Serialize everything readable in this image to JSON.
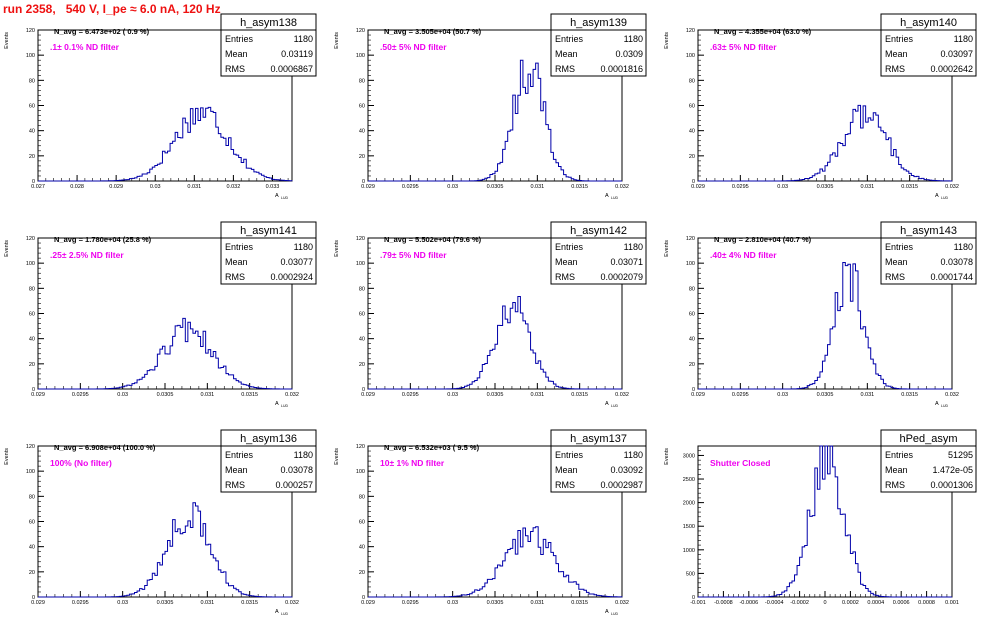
{
  "title": "run 2358,   540 V, I_pe ≈ 6.0 nA, 120 Hz",
  "colors": {
    "title": "#ee1111",
    "annotation": "#ee00ee",
    "histogram": "#0000aa",
    "frame": "#000000"
  },
  "chart_data": [
    {
      "type": "histogram",
      "name": "h_asym138",
      "stats": {
        "Entries": "1180",
        "Mean": "0.03119",
        "RMS": "0.0006867"
      },
      "navg": "N_avg = 6.473e+02 ( 0.9 %)",
      "annotation": ".1± 0.1% ND filter",
      "ylabel": "Events",
      "xlabel": "A",
      "xlim": [
        0.027,
        0.0335
      ],
      "ylim": [
        0,
        120
      ],
      "xticks": [
        0.027,
        0.028,
        0.029,
        0.03,
        0.031,
        0.032,
        0.033
      ],
      "xtick_labels": [
        "0.027",
        "0.028",
        "0.029",
        "0.03",
        "0.031",
        "0.032",
        "0.033"
      ],
      "yticks": [
        0,
        20,
        40,
        60,
        80,
        100,
        120
      ],
      "mean": 0.03119,
      "rms": 0.0006867,
      "peak": 55
    },
    {
      "type": "histogram",
      "name": "h_asym139",
      "stats": {
        "Entries": "1180",
        "Mean": "0.0309",
        "RMS": "0.0001816"
      },
      "navg": "N_avg = 3.505e+04 (50.7 %)",
      "annotation": ".50± 5% ND filter",
      "ylabel": "Events",
      "xlabel": "A",
      "xlim": [
        0.029,
        0.032
      ],
      "ylim": [
        0,
        120
      ],
      "xticks": [
        0.029,
        0.0295,
        0.03,
        0.0305,
        0.031,
        0.0315,
        0.032
      ],
      "xtick_labels": [
        "0.029",
        "0.0295",
        "0.03",
        "0.0305",
        "0.031",
        "0.0315",
        "0.032"
      ],
      "yticks": [
        0,
        20,
        40,
        60,
        80,
        100,
        120
      ],
      "mean": 0.0309,
      "rms": 0.0001816,
      "peak": 90
    },
    {
      "type": "histogram",
      "name": "h_asym140",
      "stats": {
        "Entries": "1180",
        "Mean": "0.03097",
        "RMS": "0.0002642"
      },
      "navg": "N_avg = 4.355e+04 (63.0 %)",
      "annotation": ".63± 5% ND filter",
      "ylabel": "Events",
      "xlabel": "A",
      "xlim": [
        0.029,
        0.032
      ],
      "ylim": [
        0,
        120
      ],
      "xticks": [
        0.029,
        0.0295,
        0.03,
        0.0305,
        0.031,
        0.0315,
        0.032
      ],
      "xtick_labels": [
        "0.029",
        "0.0295",
        "0.03",
        "0.0305",
        "0.031",
        "0.0315",
        "0.032"
      ],
      "yticks": [
        0,
        20,
        40,
        60,
        80,
        100,
        120
      ],
      "mean": 0.03097,
      "rms": 0.0002642,
      "peak": 53
    },
    {
      "type": "histogram",
      "name": "h_asym141",
      "stats": {
        "Entries": "1180",
        "Mean": "0.03077",
        "RMS": "0.0002924"
      },
      "navg": "N_avg = 1.780e+04 (25.8 %)",
      "annotation": ".25± 2.5% ND filter",
      "ylabel": "Events",
      "xlabel": "A",
      "xlim": [
        0.029,
        0.032
      ],
      "ylim": [
        0,
        120
      ],
      "xticks": [
        0.029,
        0.0295,
        0.03,
        0.0305,
        0.031,
        0.0315,
        0.032
      ],
      "xtick_labels": [
        "0.029",
        "0.0295",
        "0.03",
        "0.0305",
        "0.031",
        "0.0315",
        "0.032"
      ],
      "yticks": [
        0,
        20,
        40,
        60,
        80,
        100,
        120
      ],
      "mean": 0.03077,
      "rms": 0.0002924,
      "peak": 47
    },
    {
      "type": "histogram",
      "name": "h_asym142",
      "stats": {
        "Entries": "1180",
        "Mean": "0.03071",
        "RMS": "0.0002079"
      },
      "navg": "N_avg = 5.502e+04 (79.6 %)",
      "annotation": ".79± 5% ND filter",
      "ylabel": "Events",
      "xlabel": "A",
      "xlim": [
        0.029,
        0.032
      ],
      "ylim": [
        0,
        120
      ],
      "xticks": [
        0.029,
        0.0295,
        0.03,
        0.0305,
        0.031,
        0.0315,
        0.032
      ],
      "xtick_labels": [
        "0.029",
        "0.0295",
        "0.03",
        "0.0305",
        "0.031",
        "0.0315",
        "0.032"
      ],
      "yticks": [
        0,
        20,
        40,
        60,
        80,
        100,
        120
      ],
      "mean": 0.03071,
      "rms": 0.0002079,
      "peak": 65
    },
    {
      "type": "histogram",
      "name": "h_asym143",
      "stats": {
        "Entries": "1180",
        "Mean": "0.03078",
        "RMS": "0.0001744"
      },
      "navg": "N_avg = 2.810e+04 (40.7 %)",
      "annotation": ".40± 4% ND filter",
      "ylabel": "Events",
      "xlabel": "A",
      "xlim": [
        0.029,
        0.032
      ],
      "ylim": [
        0,
        120
      ],
      "xticks": [
        0.029,
        0.0295,
        0.03,
        0.0305,
        0.031,
        0.0315,
        0.032
      ],
      "xtick_labels": [
        "0.029",
        "0.0295",
        "0.03",
        "0.0305",
        "0.031",
        "0.0315",
        "0.032"
      ],
      "yticks": [
        0,
        20,
        40,
        60,
        80,
        100,
        120
      ],
      "mean": 0.03078,
      "rms": 0.0001744,
      "peak": 90
    },
    {
      "type": "histogram",
      "name": "h_asym136",
      "stats": {
        "Entries": "1180",
        "Mean": "0.03078",
        "RMS": "0.000257"
      },
      "navg": "N_avg = 6.908e+04 (100.0 %)",
      "annotation": "100% (No filter)",
      "ylabel": "Events",
      "xlabel": "A",
      "xlim": [
        0.029,
        0.032
      ],
      "ylim": [
        0,
        120
      ],
      "xticks": [
        0.029,
        0.0295,
        0.03,
        0.0305,
        0.031,
        0.0315,
        0.032
      ],
      "xtick_labels": [
        "0.029",
        "0.0295",
        "0.03",
        "0.0305",
        "0.031",
        "0.0315",
        "0.032"
      ],
      "yticks": [
        0,
        20,
        40,
        60,
        80,
        100,
        120
      ],
      "mean": 0.03078,
      "rms": 0.000257,
      "peak": 65
    },
    {
      "type": "histogram",
      "name": "h_asym137",
      "stats": {
        "Entries": "1180",
        "Mean": "0.03092",
        "RMS": "0.0002987"
      },
      "navg": "N_avg = 6.532e+03 ( 9.5 %)",
      "annotation": "10± 1% ND filter",
      "ylabel": "Events",
      "xlabel": "A",
      "xlim": [
        0.029,
        0.032
      ],
      "ylim": [
        0,
        120
      ],
      "xticks": [
        0.029,
        0.0295,
        0.03,
        0.0305,
        0.031,
        0.0315,
        0.032
      ],
      "xtick_labels": [
        "0.029",
        "0.0295",
        "0.03",
        "0.0305",
        "0.031",
        "0.0315",
        "0.032"
      ],
      "yticks": [
        0,
        20,
        40,
        60,
        80,
        100,
        120
      ],
      "mean": 0.03092,
      "rms": 0.0002987,
      "peak": 48
    },
    {
      "type": "histogram",
      "name": "hPed_asym",
      "stats": {
        "Entries": "51295",
        "Mean": "1.472e-05",
        "RMS": "0.0001306"
      },
      "navg": "",
      "annotation": "Shutter Closed",
      "ylabel": "Events",
      "xlabel": "",
      "xlim": [
        -0.001,
        0.001
      ],
      "ylim": [
        0,
        3200
      ],
      "xticks": [
        -0.001,
        -0.0008,
        -0.0006,
        -0.0004,
        -0.0002,
        0,
        0.0002,
        0.0004,
        0.0006,
        0.0008,
        0.001
      ],
      "xtick_labels": [
        "-0.001",
        "-0.0008",
        "-0.0006",
        "-0.0004",
        "-0.0002",
        "0",
        "0.0002",
        "0.0004",
        "0.0006",
        "0.0008",
        "0.001"
      ],
      "yticks": [
        0,
        500,
        1000,
        1500,
        2000,
        2500,
        3000
      ],
      "mean": 1.472e-05,
      "rms": 0.0001306,
      "peak": 3050
    }
  ]
}
